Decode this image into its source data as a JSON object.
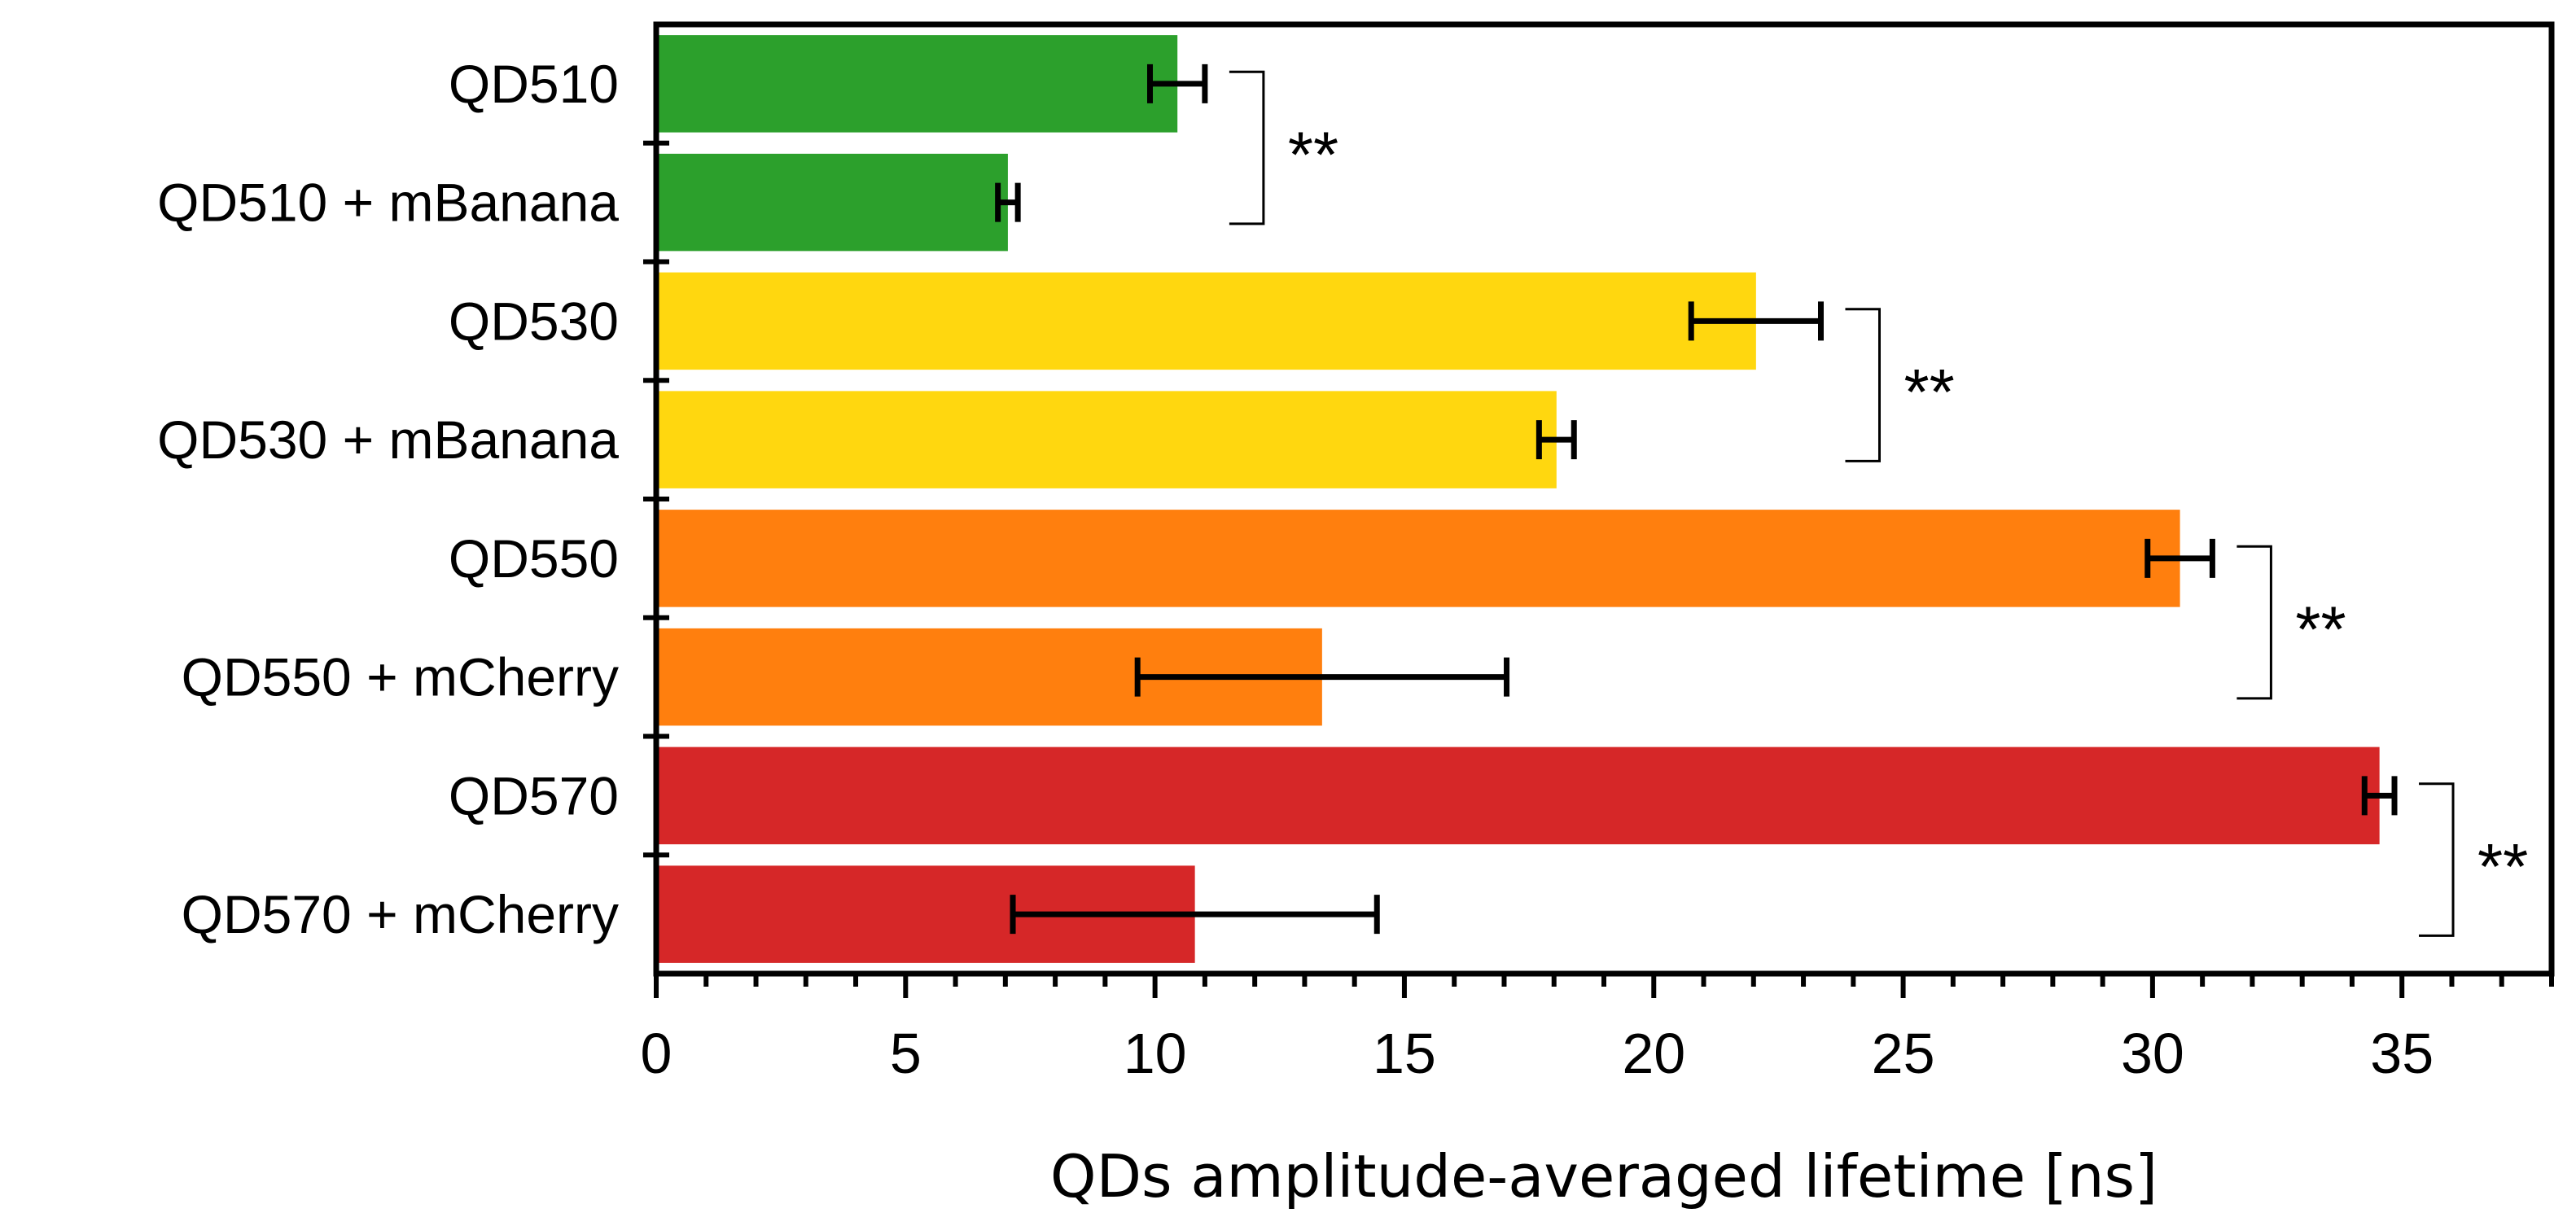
{
  "chart_data": {
    "type": "bar",
    "orientation": "horizontal",
    "categories": [
      "QD510",
      "QD510 + mBanana",
      "QD530",
      "QD530 + mBanana",
      "QD550",
      "QD550 + mCherry",
      "QD570",
      "QD570 + mCherry"
    ],
    "values": [
      10.45,
      7.05,
      22.05,
      18.05,
      30.55,
      13.35,
      34.55,
      10.8
    ],
    "errors": [
      0.55,
      0.2,
      1.3,
      0.35,
      0.65,
      3.7,
      0.3,
      3.65
    ],
    "colors": [
      "#2ca02c",
      "#2ca02c",
      "#ffd70f",
      "#ffd70f",
      "#ff7f0e",
      "#ff7f0e",
      "#d62728",
      "#d62728"
    ],
    "xlim": [
      0,
      38
    ],
    "xticks": [
      "0",
      "5",
      "10",
      "15",
      "20",
      "25",
      "30",
      "35"
    ],
    "xlabel": "QDs amplitude-averaged lifetime [ns]",
    "ylabel": "",
    "title": "",
    "grid": false,
    "significance": [
      {
        "pair": [
          0,
          1
        ],
        "label": "**"
      },
      {
        "pair": [
          2,
          3
        ],
        "label": "**"
      },
      {
        "pair": [
          4,
          5
        ],
        "label": "**"
      },
      {
        "pair": [
          6,
          7
        ],
        "label": "**"
      }
    ]
  }
}
